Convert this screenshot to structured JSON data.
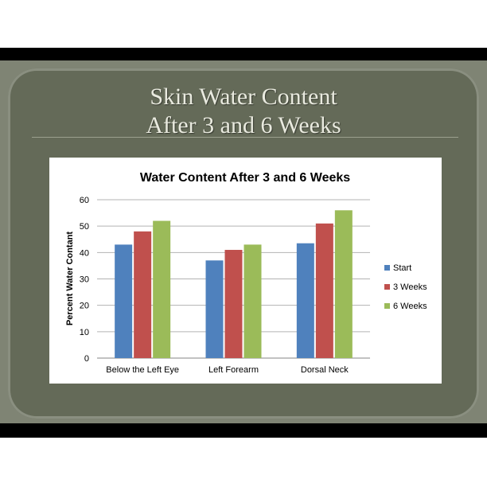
{
  "slide": {
    "title_line1": "Skin Water Content",
    "title_line2": "After 3 and 6 Weeks"
  },
  "chart_data": {
    "type": "bar",
    "title": "Water Content After 3 and 6 Weeks",
    "xlabel": "",
    "ylabel": "Percent Water Contant",
    "categories": [
      "Below the Left Eye",
      "Left Forearm",
      "Dorsal Neck"
    ],
    "series": [
      {
        "name": "Start",
        "values": [
          43,
          37,
          43.5
        ],
        "color": "#4f81bd"
      },
      {
        "name": "3 Weeks",
        "values": [
          48,
          41,
          51
        ],
        "color": "#c0504d"
      },
      {
        "name": "6 Weeks",
        "values": [
          52,
          43,
          56
        ],
        "color": "#9bbb59"
      }
    ],
    "ylim": [
      0,
      60
    ],
    "yticks": [
      0,
      10,
      20,
      30,
      40,
      50,
      60
    ],
    "grid": true,
    "legend": "right"
  }
}
